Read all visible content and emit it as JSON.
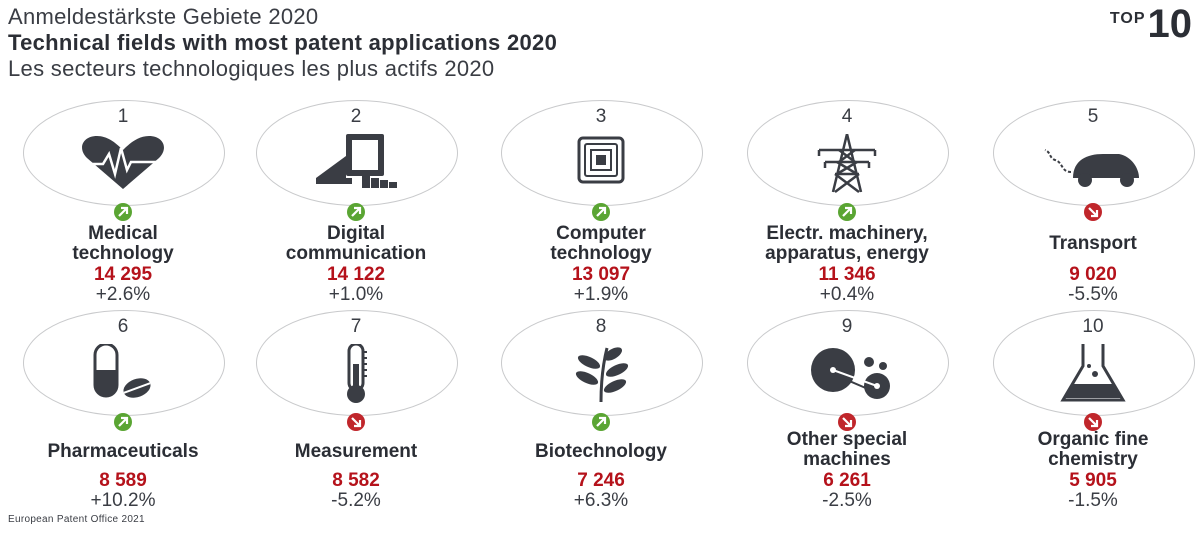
{
  "titles": {
    "de": "Anmeldestärkste Gebiete 2020",
    "en": "Technical fields with most patent applications 2020",
    "fr": "Les secteurs technologiques les plus actifs 2020"
  },
  "badge": {
    "top": "TOP",
    "num": "10"
  },
  "items": [
    {
      "rank": "1",
      "name1": "Medical",
      "name2": "technology",
      "value": "14 295",
      "change": "+2.6%",
      "trend": "up",
      "icon": "heart-pulse-icon"
    },
    {
      "rank": "2",
      "name1": "Digital",
      "name2": "communication",
      "value": "14 122",
      "change": "+1.0%",
      "trend": "up",
      "icon": "tablet-hand-icon"
    },
    {
      "rank": "3",
      "name1": "Computer",
      "name2": "technology",
      "value": "13 097",
      "change": "+1.9%",
      "trend": "up",
      "icon": "chip-icon"
    },
    {
      "rank": "4",
      "name1": "Electr. machinery,",
      "name2": "apparatus, energy",
      "value": "11 346",
      "change": "+0.4%",
      "trend": "up",
      "icon": "power-pylon-icon"
    },
    {
      "rank": "5",
      "name1": "Transport",
      "name2": "",
      "value": "9 020",
      "change": "-5.5%",
      "trend": "down",
      "icon": "car-icon"
    },
    {
      "rank": "6",
      "name1": "Pharmaceuticals",
      "name2": "",
      "value": "8 589",
      "change": "+10.2%",
      "trend": "up",
      "icon": "pill-icon"
    },
    {
      "rank": "7",
      "name1": "Measurement",
      "name2": "",
      "value": "8 582",
      "change": "-5.2%",
      "trend": "down",
      "icon": "thermometer-icon"
    },
    {
      "rank": "8",
      "name1": "Biotechnology",
      "name2": "",
      "value": "7 246",
      "change": "+6.3%",
      "trend": "up",
      "icon": "plant-icon"
    },
    {
      "rank": "9",
      "name1": "Other special",
      "name2": "machines",
      "value": "6 261",
      "change": "-2.5%",
      "trend": "down",
      "icon": "machine-discs-icon"
    },
    {
      "rank": "10",
      "name1": "Organic fine",
      "name2": "chemistry",
      "value": "5 905",
      "change": "-1.5%",
      "trend": "down",
      "icon": "flask-icon"
    }
  ],
  "footer": "European Patent Office 2021",
  "colors": {
    "up": "#5aa533",
    "down": "#c0262b",
    "value": "#b5121b",
    "icon": "#3a3d44"
  }
}
